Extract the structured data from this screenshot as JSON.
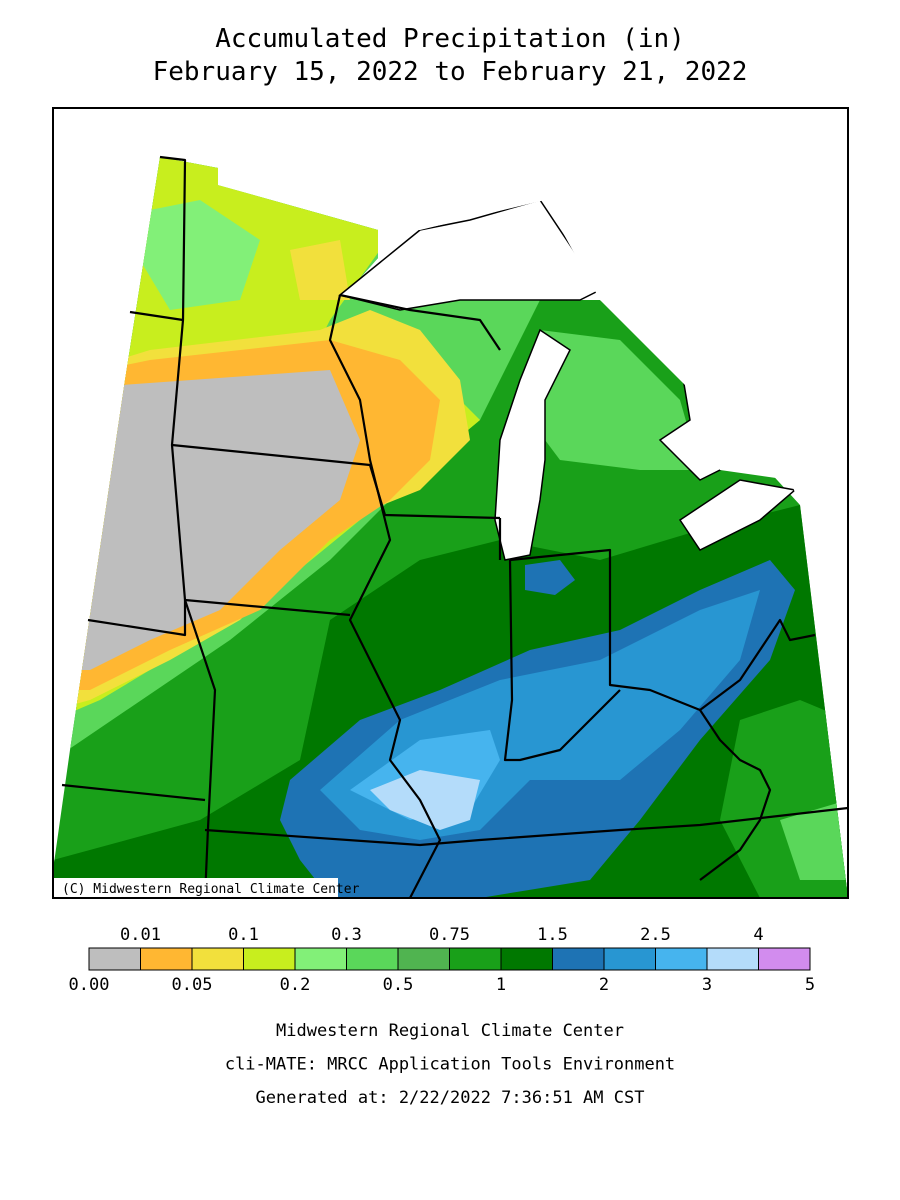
{
  "header": {
    "title": "Accumulated Precipitation (in)",
    "subtitle": "February 15, 2022 to February 21, 2022"
  },
  "map": {
    "credit": "(C) Midwestern Regional Climate Center"
  },
  "legend": {
    "colors": [
      "#bebebe",
      "#ffb732",
      "#f2e03c",
      "#c8ee1e",
      "#82f078",
      "#5ad75a",
      "#50b450",
      "#19a019",
      "#007800",
      "#1e73b4",
      "#2896d2",
      "#46b4ee",
      "#b4dcfa",
      "#d28cee"
    ],
    "upper_labels": [
      "0.01",
      "0.1",
      "0.3",
      "0.75",
      "1.5",
      "2.5",
      "4"
    ],
    "lower_labels": [
      "0.00",
      "0.05",
      "0.2",
      "0.5",
      "1",
      "2",
      "3",
      "5"
    ]
  },
  "footer": {
    "lines": [
      "Midwestern Regional Climate Center",
      "cli-MATE: MRCC Application Tools Environment",
      "Generated at: 2/22/2022 7:36:51 AM CST"
    ]
  }
}
